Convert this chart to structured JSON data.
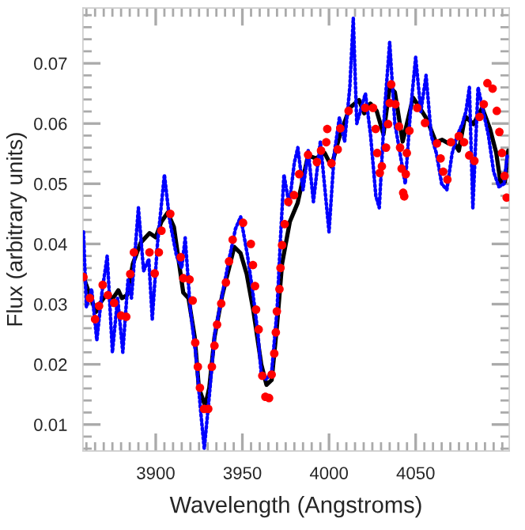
{
  "chart_data": {
    "type": "line",
    "xlabel": "Wavelength (Angstroms)",
    "ylabel": "Flux (arbitrary units)",
    "xlim": [
      3858,
      4104
    ],
    "ylim": [
      0.0056,
      0.0792
    ],
    "xticks": [
      {
        "value": 3860,
        "label": null
      },
      {
        "value": 3865,
        "label": null
      },
      {
        "value": 3870,
        "label": null
      },
      {
        "value": 3875,
        "label": null
      },
      {
        "value": 3880,
        "label": null
      },
      {
        "value": 3885,
        "label": null
      },
      {
        "value": 3890,
        "label": null
      },
      {
        "value": 3895,
        "label": null
      },
      3900,
      {
        "value": 3905,
        "label": null
      },
      {
        "value": 3910,
        "label": null
      },
      {
        "value": 3915,
        "label": null
      },
      {
        "value": 3920,
        "label": null
      },
      {
        "value": 3925,
        "label": null
      },
      {
        "value": 3930,
        "label": null
      },
      {
        "value": 3935,
        "label": null
      },
      {
        "value": 3940,
        "label": null
      },
      {
        "value": 3945,
        "label": null
      },
      3950,
      {
        "value": 3955,
        "label": null
      },
      {
        "value": 3960,
        "label": null
      },
      {
        "value": 3965,
        "label": null
      },
      {
        "value": 3970,
        "label": null
      },
      {
        "value": 3975,
        "label": null
      },
      {
        "value": 3980,
        "label": null
      },
      {
        "value": 3985,
        "label": null
      },
      {
        "value": 3990,
        "label": null
      },
      {
        "value": 3995,
        "label": null
      },
      4000,
      {
        "value": 4005,
        "label": null
      },
      {
        "value": 4010,
        "label": null
      },
      {
        "value": 4015,
        "label": null
      },
      {
        "value": 4020,
        "label": null
      },
      {
        "value": 4025,
        "label": null
      },
      {
        "value": 4030,
        "label": null
      },
      {
        "value": 4035,
        "label": null
      },
      {
        "value": 4040,
        "label": null
      },
      {
        "value": 4045,
        "label": null
      },
      4050,
      {
        "value": 4055,
        "label": null
      },
      {
        "value": 4060,
        "label": null
      },
      {
        "value": 4065,
        "label": null
      },
      {
        "value": 4070,
        "label": null
      },
      {
        "value": 4075,
        "label": null
      },
      {
        "value": 4080,
        "label": null
      },
      {
        "value": 4085,
        "label": null
      },
      {
        "value": 4090,
        "label": null
      },
      {
        "value": 4095,
        "label": null
      },
      {
        "value": 4100,
        "label": null
      }
    ],
    "yticks": [
      {
        "value": 0.006,
        "label": null
      },
      {
        "value": 0.008,
        "label": null
      },
      0.01,
      {
        "value": 0.012,
        "label": null
      },
      {
        "value": 0.014,
        "label": null
      },
      {
        "value": 0.016,
        "label": null
      },
      {
        "value": 0.018,
        "label": null
      },
      0.02,
      {
        "value": 0.022,
        "label": null
      },
      {
        "value": 0.024,
        "label": null
      },
      {
        "value": 0.026,
        "label": null
      },
      {
        "value": 0.028,
        "label": null
      },
      0.03,
      {
        "value": 0.032,
        "label": null
      },
      {
        "value": 0.034,
        "label": null
      },
      {
        "value": 0.036,
        "label": null
      },
      {
        "value": 0.038,
        "label": null
      },
      0.04,
      {
        "value": 0.042,
        "label": null
      },
      {
        "value": 0.044,
        "label": null
      },
      {
        "value": 0.046,
        "label": null
      },
      {
        "value": 0.048,
        "label": null
      },
      0.05,
      {
        "value": 0.052,
        "label": null
      },
      {
        "value": 0.054,
        "label": null
      },
      {
        "value": 0.056,
        "label": null
      },
      {
        "value": 0.058,
        "label": null
      },
      0.06,
      {
        "value": 0.062,
        "label": null
      },
      {
        "value": 0.064,
        "label": null
      },
      {
        "value": 0.066,
        "label": null
      },
      {
        "value": 0.068,
        "label": null
      },
      0.07,
      {
        "value": 0.072,
        "label": null
      },
      {
        "value": 0.074,
        "label": null
      },
      {
        "value": 0.076,
        "label": null
      },
      {
        "value": 0.078,
        "label": null
      }
    ],
    "grid": false,
    "legend": false,
    "series": [
      {
        "color": "#0000ff",
        "line_style": "dotted",
        "x": [
          3858.3,
          3860,
          3863,
          3866,
          3869,
          3872,
          3875,
          3878,
          3881,
          3884,
          3886,
          3890,
          3893,
          3896,
          3898,
          3901,
          3905,
          3908,
          3912,
          3915,
          3917,
          3920,
          3923,
          3926,
          3928,
          3931,
          3934,
          3938,
          3942,
          3946,
          3949,
          3953,
          3956,
          3959,
          3961,
          3964,
          3967,
          3970,
          3972,
          3974,
          3977,
          3980,
          3982,
          3985,
          3988,
          3991,
          3995,
          3998,
          4000,
          4003,
          4006,
          4009,
          4012,
          4014,
          4016,
          4018,
          4021,
          4024,
          4027,
          4029,
          4032,
          4035,
          4038,
          4041,
          4044,
          4047,
          4050,
          4053,
          4056,
          4059,
          4062,
          4065,
          4068,
          4071,
          4074,
          4077,
          4079,
          4081,
          4083,
          4086,
          4089,
          4092,
          4095,
          4098,
          4101,
          4103
        ],
        "values": [
          0.042,
          0.0295,
          0.0325,
          0.024,
          0.032,
          0.038,
          0.022,
          0.031,
          0.022,
          0.034,
          0.031,
          0.046,
          0.0355,
          0.0375,
          0.0275,
          0.04,
          0.0515,
          0.044,
          0.038,
          0.036,
          0.041,
          0.029,
          0.022,
          0.012,
          0.006,
          0.015,
          0.025,
          0.031,
          0.037,
          0.0425,
          0.0445,
          0.038,
          0.032,
          0.025,
          0.018,
          0.0175,
          0.019,
          0.029,
          0.041,
          0.0515,
          0.0465,
          0.0535,
          0.056,
          0.049,
          0.0555,
          0.047,
          0.057,
          0.048,
          0.042,
          0.055,
          0.061,
          0.057,
          0.066,
          0.0775,
          0.06,
          0.062,
          0.065,
          0.058,
          0.048,
          0.046,
          0.062,
          0.0735,
          0.06,
          0.055,
          0.05,
          0.062,
          0.071,
          0.062,
          0.068,
          0.058,
          0.055,
          0.05,
          0.049,
          0.055,
          0.058,
          0.06,
          0.062,
          0.066,
          0.046,
          0.066,
          0.062,
          0.058,
          0.052,
          0.0495,
          0.05,
          0.055
        ]
      },
      {
        "color": "#000000",
        "line_style": "solid",
        "x": [
          3858.3,
          3862,
          3865.5,
          3868,
          3871.5,
          3875.4,
          3878.4,
          3880.5,
          3883.5,
          3886.8,
          3891.3,
          3896.4,
          3900,
          3903.3,
          3906.9,
          3910.5,
          3915.9,
          3918.9,
          3922.5,
          3924.9,
          3928.5,
          3930.9,
          3933.9,
          3938.4,
          3942.9,
          3945.3,
          3948.9,
          3952.5,
          3956.4,
          3960.9,
          3963.9,
          3966.9,
          3969.9,
          3972.9,
          3977.4,
          3981.9,
          3987.9,
          3992.4,
          3997.5,
          4001.4,
          4005.9,
          4011.9,
          4017.3,
          4020.3,
          4023.9,
          4027.5,
          4031.4,
          4035,
          4038,
          4042.5,
          4048.5,
          4052.4,
          4056.3,
          4061.7,
          4065.3,
          4068.9,
          4071.9,
          4074.9,
          4078.5,
          4083.3,
          4088.4,
          4092.9,
          4096.5,
          4098.9,
          4101.5,
          4103.4
        ],
        "values": [
          0.0345,
          0.0315,
          0.0287,
          0.0302,
          0.0316,
          0.031,
          0.0323,
          0.031,
          0.0315,
          0.0367,
          0.0402,
          0.0418,
          0.0411,
          0.0437,
          0.0452,
          0.0428,
          0.0319,
          0.031,
          0.0245,
          0.0161,
          0.0131,
          0.0161,
          0.0245,
          0.0315,
          0.0367,
          0.0395,
          0.0385,
          0.035,
          0.0288,
          0.02,
          0.0166,
          0.0174,
          0.0262,
          0.0367,
          0.0437,
          0.0468,
          0.0547,
          0.0542,
          0.0551,
          0.0529,
          0.0577,
          0.0626,
          0.0639,
          0.0617,
          0.0633,
          0.0621,
          0.0582,
          0.0661,
          0.0652,
          0.057,
          0.0643,
          0.0626,
          0.0608,
          0.0569,
          0.0573,
          0.0567,
          0.057,
          0.0555,
          0.0612,
          0.0599,
          0.0626,
          0.0591,
          0.0551,
          0.0503,
          0.0503,
          0.0555
        ]
      },
      {
        "type": "scatter",
        "color": "#ff0000",
        "marker": "circle",
        "x": [
          3858.3,
          3862,
          3865,
          3867.3,
          3869.4,
          3872.4,
          3876,
          3880,
          3883,
          3885.3,
          3887.4,
          3896.4,
          3899.4,
          3901.8,
          3903.3,
          3908.4,
          3914.4,
          3915.9,
          3919.5,
          3921.3,
          3922.8,
          3924.3,
          3925.5,
          3927.9,
          3930.3,
          3932.4,
          3933.9,
          3935.4,
          3937.8,
          3940.5,
          3942.3,
          3944.4,
          3950.4,
          3954.9,
          3956.1,
          3957.3,
          3957.9,
          3959.4,
          3961.5,
          3963.3,
          3965.4,
          3966.9,
          3968.4,
          3969.3,
          3969.9,
          3971.4,
          3972,
          3972.9,
          3974.4,
          3976.5,
          3979.8,
          3982.8,
          3987.9,
          3993,
          3995.4,
          3998.4,
          3999,
          4001.4,
          4005,
          4006.5,
          4011.3,
          4020.9,
          4025.4,
          4026.9,
          4027.8,
          4029.3,
          4030.5,
          4032.9,
          4034.1,
          4035,
          4035.9,
          4038.3,
          4040.4,
          4041,
          4041.9,
          4042.8,
          4043.4,
          4044.3,
          4044.9,
          4046.4,
          4050.9,
          4055.4,
          4062.3,
          4064.4,
          4065.9,
          4068.3,
          4070.4,
          4074.9,
          4077.9,
          4080.9,
          4083.9,
          4086.9,
          4089.3,
          4091.4,
          4094.4,
          4096.8,
          4098.3,
          4099.8,
          4101.3,
          4102.5
        ],
        "values": [
          0.0345,
          0.031,
          0.0275,
          0.0297,
          0.0332,
          0.0315,
          0.0302,
          0.0281,
          0.0279,
          0.035,
          0.0386,
          0.0386,
          0.0351,
          0.0386,
          0.0422,
          0.045,
          0.0378,
          0.0343,
          0.0341,
          0.0306,
          0.0236,
          0.0196,
          0.0161,
          0.0126,
          0.0126,
          0.0196,
          0.0231,
          0.0266,
          0.0301,
          0.0336,
          0.0371,
          0.0407,
          0.0435,
          0.04,
          0.0365,
          0.033,
          0.0291,
          0.0258,
          0.0181,
          0.0146,
          0.0144,
          0.0183,
          0.0218,
          0.0253,
          0.0288,
          0.0325,
          0.036,
          0.0398,
          0.0433,
          0.047,
          0.0481,
          0.0516,
          0.0548,
          0.0536,
          0.0555,
          0.0569,
          0.0591,
          0.0534,
          0.0557,
          0.0592,
          0.0621,
          0.0626,
          0.0626,
          0.0591,
          0.0551,
          0.0518,
          0.0529,
          0.056,
          0.0599,
          0.0634,
          0.0665,
          0.0632,
          0.0595,
          0.056,
          0.0525,
          0.0485,
          0.0479,
          0.0516,
          0.0551,
          0.0588,
          0.0626,
          0.0601,
          0.0567,
          0.0542,
          0.052,
          0.0507,
          0.0569,
          0.0579,
          0.0569,
          0.0547,
          0.0538,
          0.0611,
          0.0632,
          0.0667,
          0.0658,
          0.0621,
          0.0586,
          0.0551,
          0.0513,
          0.0477
        ]
      }
    ]
  }
}
